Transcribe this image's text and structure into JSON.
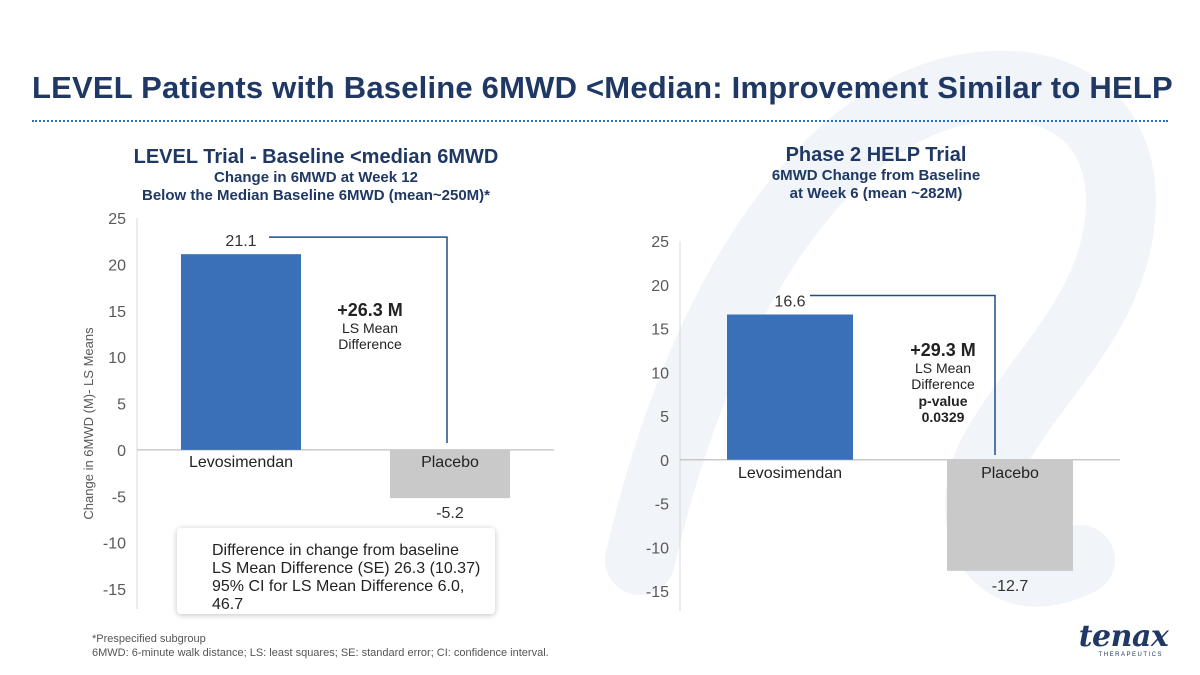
{
  "title": "LEVEL Patients with Baseline 6MWD <Median: Improvement Similar to HELP",
  "left": {
    "title": "LEVEL Trial - Baseline <median 6MWD",
    "subtitle1": "Change in 6MWD at Week 12",
    "subtitle2": "Below the Median Baseline 6MWD (mean~250M)*",
    "diff_value": "+26.3 M",
    "diff_l1": "LS Mean",
    "diff_l2": "Difference",
    "box_l1": "Difference in change from baseline",
    "box_l2": "LS Mean Difference (SE)  26.3 (10.37)",
    "box_l3": "95% CI for LS Mean Difference  6.0, 46.7"
  },
  "right": {
    "title": "Phase 2 HELP Trial",
    "subtitle1": "6MWD Change from Baseline",
    "subtitle2": "at Week 6 (mean ~282M)",
    "diff_value": "+29.3 M",
    "diff_l1": "LS Mean",
    "diff_l2": "Difference",
    "diff_l3": "p-value",
    "diff_l4": "0.0329"
  },
  "footnote1": "*Prespecified subgroup",
  "footnote2": "6MWD: 6-minute walk distance; LS: least squares; SE: standard error; CI: confidence interval.",
  "logo": {
    "word": "tenax",
    "sub": "THERAPEUTICS"
  },
  "colors": {
    "title": "#1f3864",
    "bar_drug": "#3a70b8",
    "bar_placebo": "#c9c9c9",
    "bracket": "#1f4e8c"
  },
  "chart_data": [
    {
      "type": "bar",
      "categories": [
        "Levosimendan",
        "Placebo"
      ],
      "values": [
        21.1,
        -5.2
      ],
      "value_labels": [
        "21.1",
        "-5.2"
      ],
      "title": "LEVEL Trial - Baseline <median 6MWD",
      "ylabel": "Change in 6MWD (M)- LS Means",
      "ylim": [
        -15,
        25
      ],
      "yticks": [
        25,
        20,
        15,
        10,
        5,
        0,
        -5,
        -10,
        -15
      ],
      "grid": false
    },
    {
      "type": "bar",
      "categories": [
        "Levosimendan",
        "Placebo"
      ],
      "values": [
        16.6,
        -12.7
      ],
      "value_labels": [
        "16.6",
        "-12.7"
      ],
      "title": "Phase 2 HELP Trial",
      "ylabel": "",
      "ylim": [
        -15,
        25
      ],
      "yticks": [
        25,
        20,
        15,
        10,
        5,
        0,
        -5,
        -10,
        -15
      ],
      "grid": false
    }
  ]
}
